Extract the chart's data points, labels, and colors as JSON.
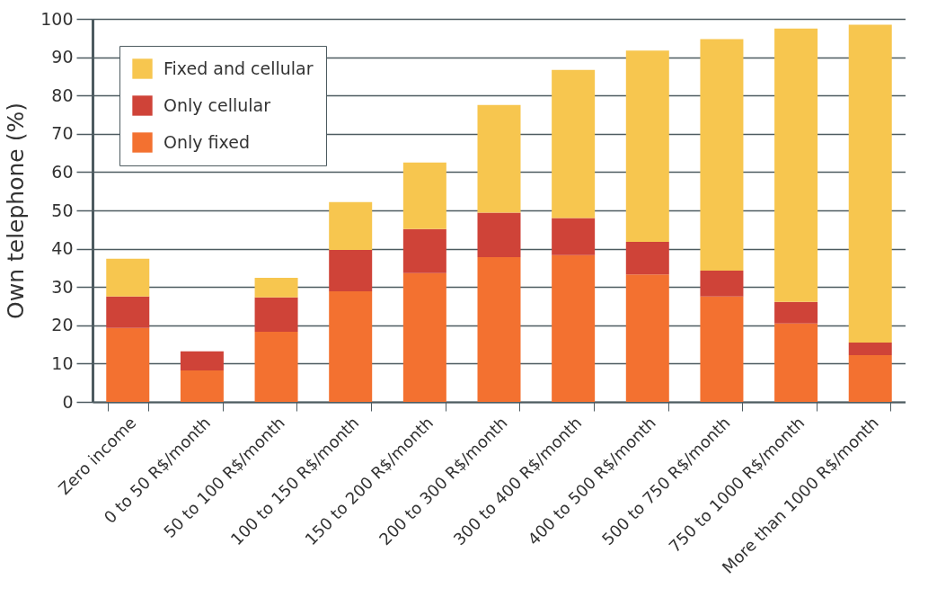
{
  "chart_data": {
    "type": "bar",
    "stacked": true,
    "ylabel": "Own telephone (%)",
    "categories": [
      "Zero income",
      "0 to 50 R$/month",
      "50 to 100 R$/month",
      "100 to 150 R$/month",
      "150 to 200 R$/month",
      "200 to 300 R$/month",
      "300 to 400 R$/month",
      "400 to 500 R$/month",
      "500 to 750 R$/month",
      "750 to 1000 R$/month",
      "More than 1000 R$/month"
    ],
    "series": [
      {
        "name": "Only fixed",
        "color": "#f37130",
        "values": [
          19.3,
          8.2,
          18.3,
          28.9,
          33.6,
          37.8,
          38.3,
          33.3,
          27.5,
          20.5,
          12.2
        ]
      },
      {
        "name": "Only cellular",
        "color": "#cf4338",
        "values": [
          8.2,
          5.0,
          9.0,
          10.8,
          11.5,
          11.6,
          9.7,
          8.5,
          6.8,
          5.6,
          3.3
        ]
      },
      {
        "name": "Fixed and cellular",
        "color": "#f7c64f",
        "values": [
          9.9,
          0,
          5.1,
          12.5,
          17.4,
          28.1,
          38.7,
          49.9,
          60.4,
          71.4,
          83.0
        ]
      }
    ],
    "ylim": [
      0,
      100
    ],
    "yticks": [
      0,
      10,
      20,
      30,
      40,
      50,
      60,
      70,
      80,
      90,
      100
    ],
    "grid": "y",
    "legend": "top left"
  }
}
